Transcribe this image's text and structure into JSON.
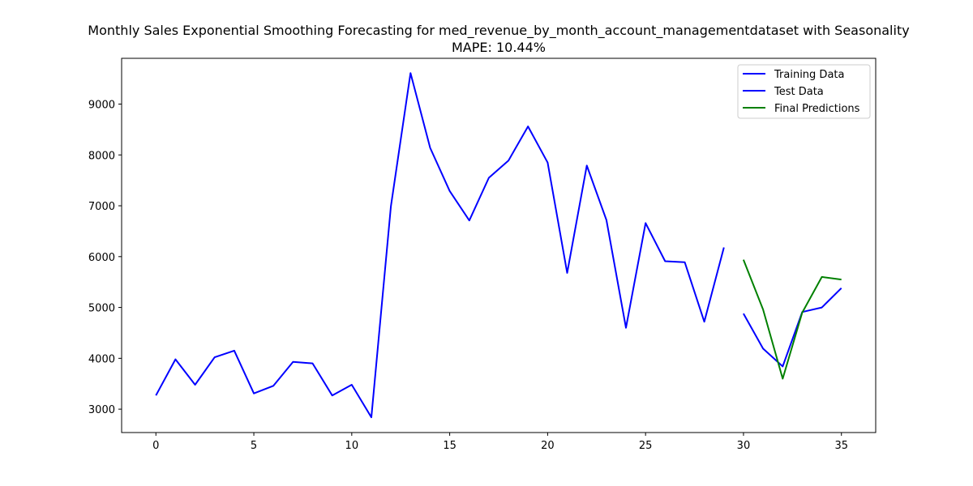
{
  "chart_data": {
    "type": "line",
    "title": "Monthly Sales Exponential Smoothing Forecasting for med_revenue_by_month_account_managementdataset with Seasonality",
    "subtitle": "MAPE: 10.44%",
    "xlabel": "",
    "ylabel": "",
    "xlim": [
      -1.75,
      36.75
    ],
    "ylim": [
      2540,
      9900
    ],
    "xticks": [
      0,
      5,
      10,
      15,
      20,
      25,
      30,
      35
    ],
    "yticks": [
      3000,
      4000,
      5000,
      6000,
      7000,
      8000,
      9000
    ],
    "grid": false,
    "legend_position": "top-right",
    "series": [
      {
        "name": "Training Data",
        "color": "#0000ff",
        "x": [
          0,
          1,
          2,
          3,
          4,
          5,
          6,
          7,
          8,
          9,
          10,
          11,
          12,
          13,
          14,
          15,
          16,
          17,
          18,
          19,
          20,
          21,
          22,
          23,
          24,
          25,
          26,
          27,
          28,
          29
        ],
        "values": [
          3270,
          3980,
          3480,
          4020,
          4150,
          3310,
          3460,
          3930,
          3900,
          3270,
          3480,
          2840,
          6990,
          9610,
          8140,
          7290,
          6710,
          7550,
          7890,
          8560,
          7850,
          5680,
          7790,
          6720,
          4600,
          6660,
          5910,
          5890,
          4720,
          6180
        ]
      },
      {
        "name": "Test Data",
        "color": "#0000ff",
        "x": [
          30,
          31,
          32,
          33,
          34,
          35
        ],
        "values": [
          4880,
          4190,
          3840,
          4910,
          5000,
          5380
        ]
      },
      {
        "name": "Final Predictions",
        "color": "#008000",
        "x": [
          30,
          31,
          32,
          33,
          34,
          35
        ],
        "values": [
          5940,
          4960,
          3600,
          4900,
          5600,
          5550
        ]
      }
    ]
  }
}
